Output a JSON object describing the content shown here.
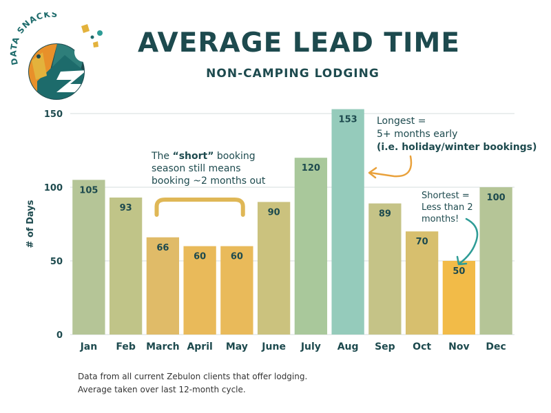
{
  "brand": {
    "logo_text": "DATA SNACKS"
  },
  "header": {
    "title": "AVERAGE LEAD TIME",
    "subtitle": "NON-CAMPING LODGING"
  },
  "chart_data": {
    "type": "bar",
    "title": "AVERAGE LEAD TIME",
    "subtitle": "NON-CAMPING LODGING",
    "xlabel": "",
    "ylabel": "# of Days",
    "ylim": [
      0,
      150
    ],
    "yticks": [
      0,
      50,
      100,
      150
    ],
    "grid": true,
    "categories": [
      "Jan",
      "Feb",
      "March",
      "April",
      "May",
      "June",
      "July",
      "Aug",
      "Sep",
      "Oct",
      "Nov",
      "Dec"
    ],
    "values": [
      105,
      93,
      66,
      60,
      60,
      90,
      120,
      153,
      89,
      70,
      50,
      100
    ],
    "bar_colors": [
      "#b5c597",
      "#c0c488",
      "#e0bb68",
      "#e9ba5a",
      "#e9ba5a",
      "#cbc27e",
      "#a9c89b",
      "#95cbbb",
      "#c5c387",
      "#d7bf6e",
      "#f2bb48",
      "#b5c597"
    ],
    "annotations": {
      "short_prefix": "The ",
      "short_bold": "“short”",
      "short_suffix": " booking",
      "short_line2": "season still means",
      "short_line3": "booking ~2 months out",
      "long_line1": "Longest =",
      "long_line2": "5+ months early",
      "long_line3": "(i.e. holiday/winter bookings)",
      "shortest_line1": "Shortest =",
      "shortest_line2": "Less than 2",
      "shortest_line3": "months!"
    }
  },
  "footnotes": {
    "line1": "Data from all current Zebulon clients that offer lodging.",
    "line2": "Average taken over last 12-month cycle."
  },
  "colors": {
    "primary": "#1d4a4e",
    "teal": "#1d6b6b",
    "orange": "#e8902a",
    "yellow": "#e3b23c",
    "grid": "#d6dcdc",
    "bracket": "#dfb756",
    "arrow_orange": "#e9a13b",
    "arrow_teal": "#2e9c96"
  }
}
